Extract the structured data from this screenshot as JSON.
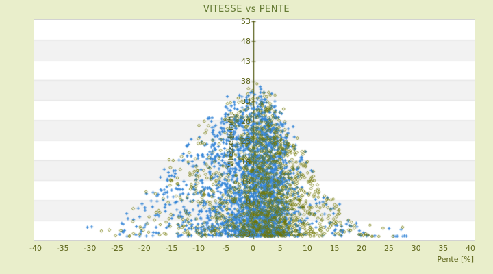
{
  "page": {
    "background_color": "#e9eecb",
    "plot_background": "#ffffff",
    "stripe_color": "#f2f2f2",
    "stripe_line_color": "#e3e3e3",
    "border_color": "#d2d2d2",
    "axis_line_color": "#4f570d",
    "tick_label_color": "#5c6418",
    "title_color": "#647a33"
  },
  "chart_data": {
    "type": "scatter",
    "title": "VITESSE vs PENTE",
    "xlabel": "Pente [%]",
    "ylabel": "Vitesse [km/h]",
    "xlim": [
      -40,
      40
    ],
    "ylim": [
      3,
      53
    ],
    "x_ticks": [
      -40,
      -35,
      -30,
      -25,
      -20,
      -15,
      -10,
      -5,
      0,
      5,
      10,
      15,
      20,
      25,
      30,
      35,
      40
    ],
    "y_ticks": [
      53,
      48,
      43,
      38,
      33,
      28,
      23,
      18,
      13,
      8,
      3
    ],
    "grid": "horizontal-stripes",
    "stripe_count": 11,
    "legend": "none",
    "zero_line_x": 0,
    "series": [
      {
        "name": "vitesse-points-bleus",
        "marker": "plus",
        "color": "#3787d8",
        "n": 2600,
        "seed": 20240501,
        "x_mixture": [
          [
            0.48,
            2.2,
            2.6
          ],
          [
            0.3,
            -1.5,
            4.5
          ],
          [
            0.17,
            -7.5,
            7.5
          ],
          [
            0.05,
            8,
            9
          ]
        ],
        "envelope": {
          "peak": 33,
          "sigma_left": 20,
          "sigma_right": 14
        },
        "y_floor": 3,
        "y_power": 1.35,
        "outliers": [
          [
            -7.8,
            29.8
          ],
          [
            -29.8,
            5.2
          ],
          [
            -30.6,
            5.1
          ],
          [
            27.1,
            4.6
          ],
          [
            24.9,
            4.8
          ]
        ]
      },
      {
        "name": "vitesse-points-olive",
        "marker": "diamond",
        "color": "#6f7600",
        "n": 1400,
        "seed": 987654,
        "x_mixture": [
          [
            0.36,
            1.5,
            2.8
          ],
          [
            0.3,
            5.5,
            5.0
          ],
          [
            0.29,
            -5,
            7.5
          ],
          [
            0.05,
            12,
            8
          ]
        ],
        "envelope": {
          "peak": 33,
          "sigma_left": 20,
          "sigma_right": 14
        },
        "y_floor": 3,
        "y_power": 1.35,
        "outliers": [
          [
            0.7,
            35.2
          ],
          [
            1.6,
            33.6
          ],
          [
            -0.3,
            33.9
          ],
          [
            21.4,
            5.6
          ],
          [
            27.4,
            5.1
          ],
          [
            23.8,
            4.9
          ]
        ]
      }
    ]
  }
}
